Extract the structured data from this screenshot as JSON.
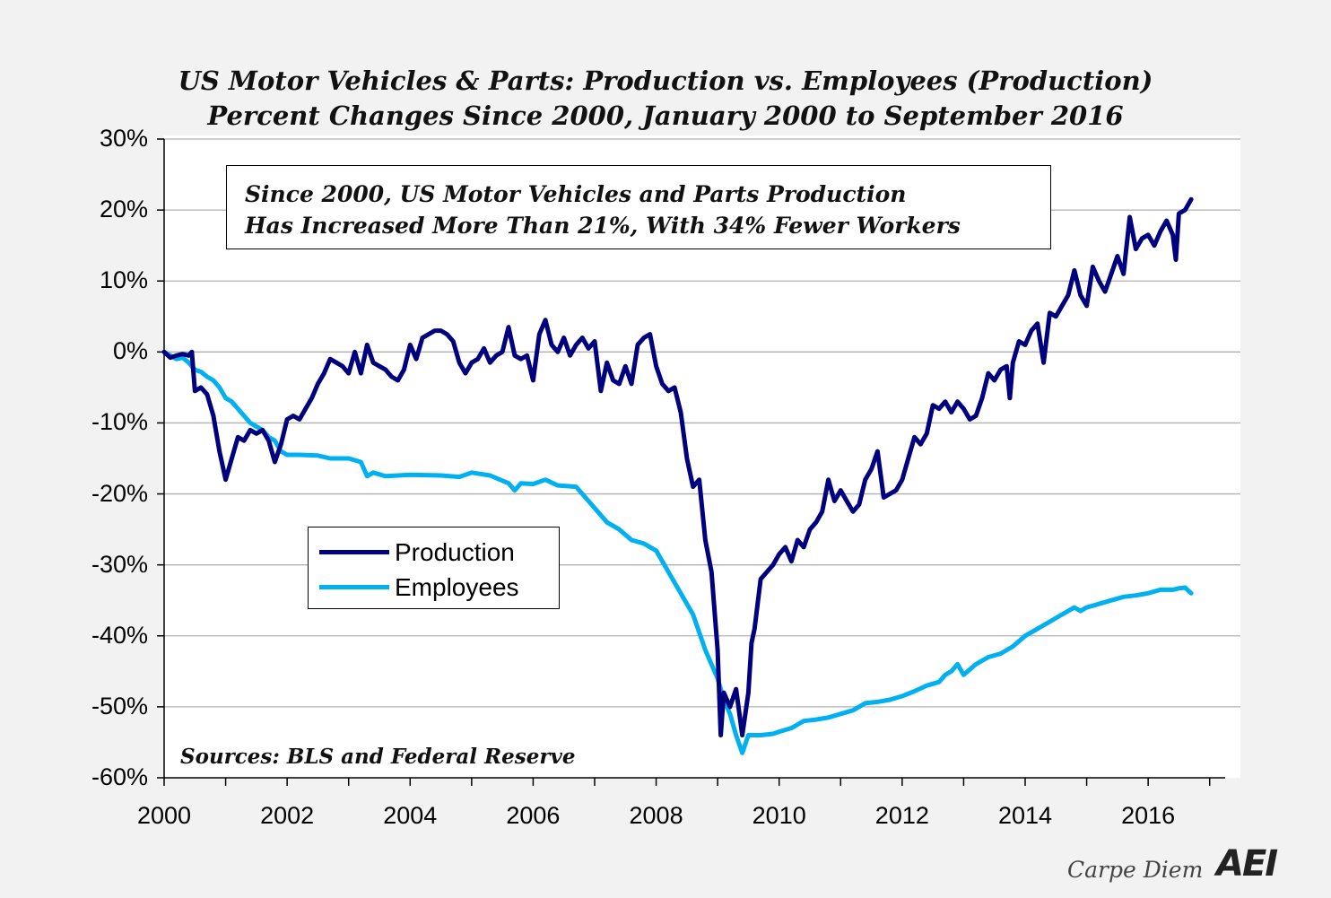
{
  "chart_data": {
    "type": "line",
    "title": "US Motor Vehicles & Parts: Production vs. Employees (Production)",
    "subtitle": "Percent Changes Since 2000, January 2000 to September 2016",
    "annotation": [
      "Since 2000, US Motor Vehicles and Parts Production",
      "Has Increased More Than 21%, With 34% Fewer Workers"
    ],
    "source": "Sources: BLS and Federal Reserve",
    "xlabel": "",
    "ylabel": "",
    "xlim": [
      2000,
      2017.5
    ],
    "ylim": [
      -60,
      30
    ],
    "x_ticks": [
      "2000",
      "2002",
      "2004",
      "2006",
      "2008",
      "2010",
      "2012",
      "2014",
      "2016"
    ],
    "y_ticks": [
      "30%",
      "20%",
      "10%",
      "0%",
      "-10%",
      "-20%",
      "-30%",
      "-40%",
      "-50%",
      "-60%"
    ],
    "grid": "horizontal",
    "legend_position": "center-left",
    "series": [
      {
        "name": "Production",
        "color": "#00007f",
        "points": [
          [
            2000.0,
            0.0
          ],
          [
            2000.1,
            -0.8
          ],
          [
            2000.2,
            -0.5
          ],
          [
            2000.3,
            -0.3
          ],
          [
            2000.4,
            -0.5
          ],
          [
            2000.45,
            0.0
          ],
          [
            2000.5,
            -5.5
          ],
          [
            2000.6,
            -5.0
          ],
          [
            2000.7,
            -6.0
          ],
          [
            2000.8,
            -9.0
          ],
          [
            2000.9,
            -14.0
          ],
          [
            2001.0,
            -18.0
          ],
          [
            2001.1,
            -15.0
          ],
          [
            2001.2,
            -12.0
          ],
          [
            2001.3,
            -12.5
          ],
          [
            2001.4,
            -11.0
          ],
          [
            2001.5,
            -11.5
          ],
          [
            2001.6,
            -11.0
          ],
          [
            2001.7,
            -12.5
          ],
          [
            2001.8,
            -15.5
          ],
          [
            2001.9,
            -13.0
          ],
          [
            2002.0,
            -9.5
          ],
          [
            2002.1,
            -9.0
          ],
          [
            2002.2,
            -9.5
          ],
          [
            2002.3,
            -8.0
          ],
          [
            2002.4,
            -6.5
          ],
          [
            2002.5,
            -4.5
          ],
          [
            2002.6,
            -3.0
          ],
          [
            2002.7,
            -1.0
          ],
          [
            2002.8,
            -1.5
          ],
          [
            2002.9,
            -2.0
          ],
          [
            2003.0,
            -3.0
          ],
          [
            2003.1,
            0.0
          ],
          [
            2003.2,
            -3.0
          ],
          [
            2003.3,
            1.0
          ],
          [
            2003.4,
            -1.5
          ],
          [
            2003.5,
            -2.0
          ],
          [
            2003.6,
            -2.5
          ],
          [
            2003.7,
            -3.5
          ],
          [
            2003.8,
            -4.0
          ],
          [
            2003.9,
            -2.5
          ],
          [
            2004.0,
            1.0
          ],
          [
            2004.1,
            -1.0
          ],
          [
            2004.2,
            2.0
          ],
          [
            2004.3,
            2.5
          ],
          [
            2004.4,
            3.0
          ],
          [
            2004.5,
            3.0
          ],
          [
            2004.6,
            2.5
          ],
          [
            2004.7,
            1.5
          ],
          [
            2004.8,
            -1.5
          ],
          [
            2004.9,
            -3.0
          ],
          [
            2005.0,
            -1.5
          ],
          [
            2005.1,
            -1.0
          ],
          [
            2005.2,
            0.5
          ],
          [
            2005.3,
            -1.5
          ],
          [
            2005.4,
            -0.5
          ],
          [
            2005.5,
            0.0
          ],
          [
            2005.6,
            3.5
          ],
          [
            2005.7,
            -0.5
          ],
          [
            2005.8,
            -1.0
          ],
          [
            2005.9,
            -0.5
          ],
          [
            2006.0,
            -4.0
          ],
          [
            2006.1,
            2.5
          ],
          [
            2006.2,
            4.5
          ],
          [
            2006.3,
            1.0
          ],
          [
            2006.4,
            0.0
          ],
          [
            2006.5,
            2.0
          ],
          [
            2006.6,
            -0.5
          ],
          [
            2006.7,
            1.0
          ],
          [
            2006.8,
            2.0
          ],
          [
            2006.9,
            0.5
          ],
          [
            2007.0,
            1.5
          ],
          [
            2007.1,
            -5.5
          ],
          [
            2007.2,
            -1.5
          ],
          [
            2007.3,
            -4.0
          ],
          [
            2007.4,
            -4.5
          ],
          [
            2007.5,
            -2.0
          ],
          [
            2007.6,
            -4.5
          ],
          [
            2007.7,
            1.0
          ],
          [
            2007.8,
            2.0
          ],
          [
            2007.9,
            2.5
          ],
          [
            2008.0,
            -2.0
          ],
          [
            2008.1,
            -4.5
          ],
          [
            2008.2,
            -5.5
          ],
          [
            2008.3,
            -5.0
          ],
          [
            2008.4,
            -8.5
          ],
          [
            2008.5,
            -15.0
          ],
          [
            2008.6,
            -19.0
          ],
          [
            2008.7,
            -18.0
          ],
          [
            2008.8,
            -26.5
          ],
          [
            2008.9,
            -31.0
          ],
          [
            2009.0,
            -42.0
          ],
          [
            2009.05,
            -54.0
          ],
          [
            2009.1,
            -48.0
          ],
          [
            2009.2,
            -50.0
          ],
          [
            2009.3,
            -47.5
          ],
          [
            2009.4,
            -54.0
          ],
          [
            2009.5,
            -48.0
          ],
          [
            2009.55,
            -41.0
          ],
          [
            2009.6,
            -39.0
          ],
          [
            2009.7,
            -32.0
          ],
          [
            2009.8,
            -31.0
          ],
          [
            2009.9,
            -30.0
          ],
          [
            2010.0,
            -28.5
          ],
          [
            2010.1,
            -27.5
          ],
          [
            2010.2,
            -29.5
          ],
          [
            2010.3,
            -26.5
          ],
          [
            2010.4,
            -27.5
          ],
          [
            2010.5,
            -25.0
          ],
          [
            2010.6,
            -24.0
          ],
          [
            2010.7,
            -22.5
          ],
          [
            2010.8,
            -18.0
          ],
          [
            2010.9,
            -21.0
          ],
          [
            2011.0,
            -19.5
          ],
          [
            2011.1,
            -21.0
          ],
          [
            2011.2,
            -22.5
          ],
          [
            2011.3,
            -21.5
          ],
          [
            2011.4,
            -18.0
          ],
          [
            2011.5,
            -16.5
          ],
          [
            2011.6,
            -14.0
          ],
          [
            2011.7,
            -20.5
          ],
          [
            2011.8,
            -20.0
          ],
          [
            2011.9,
            -19.5
          ],
          [
            2012.0,
            -18.0
          ],
          [
            2012.1,
            -15.0
          ],
          [
            2012.2,
            -12.0
          ],
          [
            2012.3,
            -13.0
          ],
          [
            2012.4,
            -11.5
          ],
          [
            2012.5,
            -7.5
          ],
          [
            2012.6,
            -8.0
          ],
          [
            2012.7,
            -7.0
          ],
          [
            2012.8,
            -8.5
          ],
          [
            2012.9,
            -7.0
          ],
          [
            2013.0,
            -8.0
          ],
          [
            2013.1,
            -9.5
          ],
          [
            2013.2,
            -9.0
          ],
          [
            2013.3,
            -6.5
          ],
          [
            2013.4,
            -3.0
          ],
          [
            2013.5,
            -4.0
          ],
          [
            2013.6,
            -2.5
          ],
          [
            2013.7,
            -2.0
          ],
          [
            2013.75,
            -6.5
          ],
          [
            2013.8,
            -1.5
          ],
          [
            2013.9,
            1.5
          ],
          [
            2014.0,
            1.0
          ],
          [
            2014.1,
            3.0
          ],
          [
            2014.2,
            4.0
          ],
          [
            2014.3,
            -1.5
          ],
          [
            2014.4,
            5.5
          ],
          [
            2014.5,
            5.0
          ],
          [
            2014.6,
            6.5
          ],
          [
            2014.7,
            8.0
          ],
          [
            2014.8,
            11.5
          ],
          [
            2014.9,
            8.0
          ],
          [
            2015.0,
            6.5
          ],
          [
            2015.1,
            12.0
          ],
          [
            2015.2,
            10.0
          ],
          [
            2015.3,
            8.5
          ],
          [
            2015.4,
            11.0
          ],
          [
            2015.5,
            13.5
          ],
          [
            2015.6,
            11.0
          ],
          [
            2015.7,
            19.0
          ],
          [
            2015.8,
            14.5
          ],
          [
            2015.9,
            16.0
          ],
          [
            2016.0,
            16.5
          ],
          [
            2016.1,
            15.0
          ],
          [
            2016.2,
            17.0
          ],
          [
            2016.3,
            18.5
          ],
          [
            2016.4,
            16.5
          ],
          [
            2016.45,
            13.0
          ],
          [
            2016.5,
            19.5
          ],
          [
            2016.6,
            20.0
          ],
          [
            2016.7,
            21.5
          ]
        ]
      },
      {
        "name": "Employees",
        "color": "#00b0f0",
        "points": [
          [
            2000.0,
            0.0
          ],
          [
            2000.1,
            -0.5
          ],
          [
            2000.2,
            -1.0
          ],
          [
            2000.3,
            -0.8
          ],
          [
            2000.4,
            -1.5
          ],
          [
            2000.5,
            -2.5
          ],
          [
            2000.6,
            -2.8
          ],
          [
            2000.7,
            -3.5
          ],
          [
            2000.8,
            -4.0
          ],
          [
            2000.9,
            -5.0
          ],
          [
            2001.0,
            -6.5
          ],
          [
            2001.1,
            -7.0
          ],
          [
            2001.2,
            -8.0
          ],
          [
            2001.3,
            -9.0
          ],
          [
            2001.4,
            -10.0
          ],
          [
            2001.5,
            -10.5
          ],
          [
            2001.6,
            -11.0
          ],
          [
            2001.7,
            -12.0
          ],
          [
            2001.8,
            -12.5
          ],
          [
            2001.9,
            -14.0
          ],
          [
            2002.0,
            -14.5
          ],
          [
            2002.2,
            -14.5
          ],
          [
            2002.5,
            -14.6
          ],
          [
            2002.7,
            -15.0
          ],
          [
            2003.0,
            -15.0
          ],
          [
            2003.2,
            -15.5
          ],
          [
            2003.3,
            -17.5
          ],
          [
            2003.4,
            -17.0
          ],
          [
            2003.6,
            -17.5
          ],
          [
            2004.0,
            -17.3
          ],
          [
            2004.5,
            -17.4
          ],
          [
            2004.8,
            -17.6
          ],
          [
            2005.0,
            -17.0
          ],
          [
            2005.3,
            -17.4
          ],
          [
            2005.6,
            -18.5
          ],
          [
            2005.7,
            -19.5
          ],
          [
            2005.8,
            -18.5
          ],
          [
            2006.0,
            -18.6
          ],
          [
            2006.2,
            -18.0
          ],
          [
            2006.4,
            -18.8
          ],
          [
            2006.7,
            -19.0
          ],
          [
            2006.8,
            -20.0
          ],
          [
            2007.0,
            -22.0
          ],
          [
            2007.2,
            -24.0
          ],
          [
            2007.4,
            -25.0
          ],
          [
            2007.6,
            -26.5
          ],
          [
            2007.8,
            -27.0
          ],
          [
            2008.0,
            -28.0
          ],
          [
            2008.2,
            -31.0
          ],
          [
            2008.4,
            -34.0
          ],
          [
            2008.6,
            -37.0
          ],
          [
            2008.8,
            -42.0
          ],
          [
            2009.0,
            -46.0
          ],
          [
            2009.1,
            -49.0
          ],
          [
            2009.2,
            -51.0
          ],
          [
            2009.3,
            -54.0
          ],
          [
            2009.4,
            -56.5
          ],
          [
            2009.5,
            -54.0
          ],
          [
            2009.7,
            -54.0
          ],
          [
            2009.9,
            -53.8
          ],
          [
            2010.0,
            -53.5
          ],
          [
            2010.2,
            -53.0
          ],
          [
            2010.4,
            -52.0
          ],
          [
            2010.6,
            -51.8
          ],
          [
            2010.8,
            -51.5
          ],
          [
            2011.0,
            -51.0
          ],
          [
            2011.2,
            -50.5
          ],
          [
            2011.4,
            -49.5
          ],
          [
            2011.6,
            -49.3
          ],
          [
            2011.8,
            -49.0
          ],
          [
            2012.0,
            -48.5
          ],
          [
            2012.2,
            -47.8
          ],
          [
            2012.4,
            -47.0
          ],
          [
            2012.6,
            -46.5
          ],
          [
            2012.7,
            -45.5
          ],
          [
            2012.8,
            -45.0
          ],
          [
            2012.9,
            -44.0
          ],
          [
            2013.0,
            -45.5
          ],
          [
            2013.2,
            -44.0
          ],
          [
            2013.4,
            -43.0
          ],
          [
            2013.6,
            -42.5
          ],
          [
            2013.8,
            -41.5
          ],
          [
            2014.0,
            -40.0
          ],
          [
            2014.2,
            -39.0
          ],
          [
            2014.4,
            -38.0
          ],
          [
            2014.6,
            -37.0
          ],
          [
            2014.8,
            -36.0
          ],
          [
            2014.9,
            -36.5
          ],
          [
            2015.0,
            -36.0
          ],
          [
            2015.2,
            -35.5
          ],
          [
            2015.4,
            -35.0
          ],
          [
            2015.6,
            -34.5
          ],
          [
            2015.8,
            -34.3
          ],
          [
            2016.0,
            -34.0
          ],
          [
            2016.2,
            -33.5
          ],
          [
            2016.4,
            -33.5
          ],
          [
            2016.5,
            -33.3
          ],
          [
            2016.6,
            -33.2
          ],
          [
            2016.7,
            -34.0
          ]
        ]
      }
    ]
  },
  "brand": {
    "tagline": "Carpe Diem",
    "logo_text": "AEI"
  },
  "colors": {
    "background": "#f2f2f2",
    "plot_area": "#ffffff",
    "gridline": "#b0b0b0"
  }
}
